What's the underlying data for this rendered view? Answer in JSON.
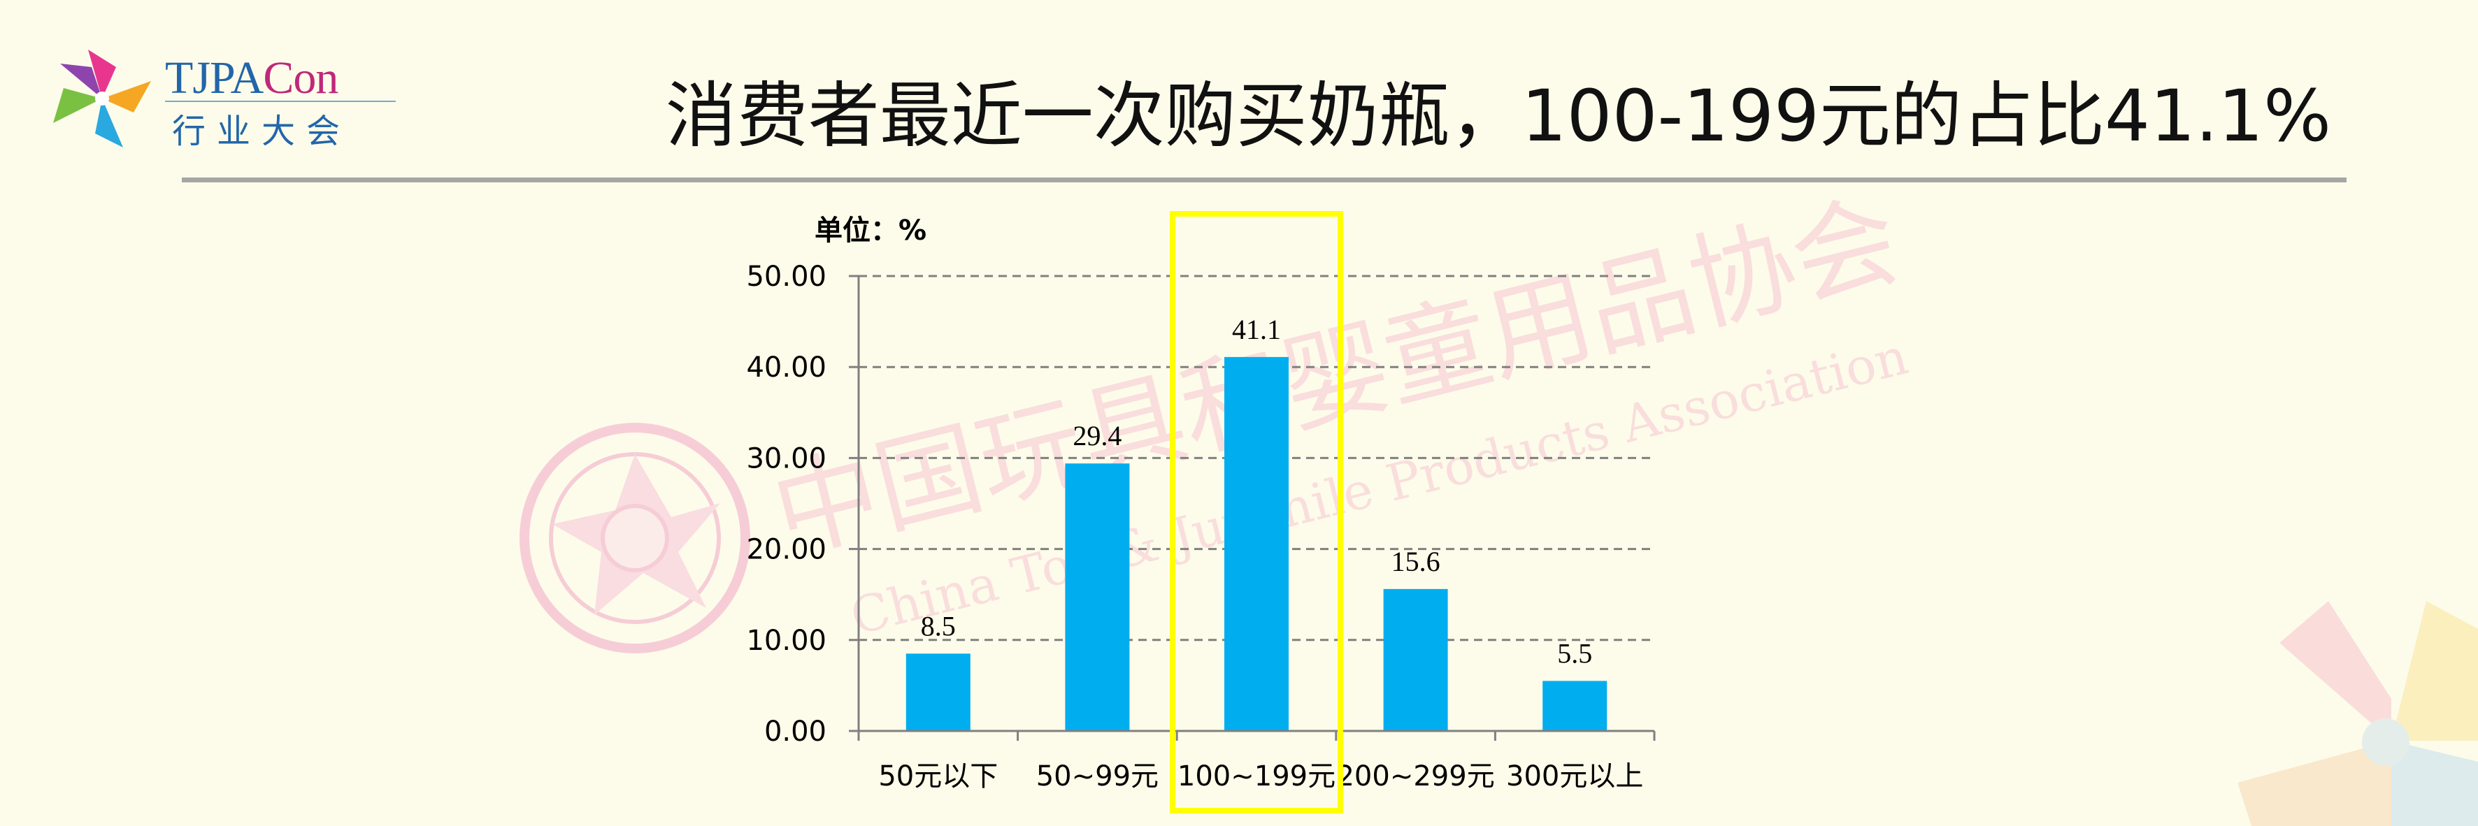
{
  "logo": {
    "brand_main": "TJPA",
    "brand_suffix": "Con",
    "subtitle": "行业大会"
  },
  "header": {
    "title": "消费者最近一次购买奶瓶，100-199元的占比41.1%"
  },
  "watermark": {
    "cn": "中国玩具和婴童用品协会",
    "en": "China Toy & Juvenile Products Association"
  },
  "colors": {
    "bar": "#00aeef",
    "highlight": "#ffff00",
    "grid": "#808080",
    "background": "#fdfcea"
  },
  "chart_data": {
    "type": "bar",
    "unit_label": "单位：%",
    "categories": [
      "50元以下",
      "50~99元",
      "100~199元",
      "200~299元",
      "300元以上"
    ],
    "values": [
      8.5,
      29.4,
      41.1,
      15.6,
      5.5
    ],
    "value_labels": [
      "8.5",
      "29.4",
      "41.1",
      "15.6",
      "5.5"
    ],
    "ylim": [
      0,
      50
    ],
    "yticks": [
      0,
      10,
      20,
      30,
      40,
      50
    ],
    "ytick_labels": [
      "0.00",
      "10.00",
      "20.00",
      "30.00",
      "40.00",
      "50.00"
    ],
    "grid": true,
    "highlight_category": "100~199元"
  }
}
